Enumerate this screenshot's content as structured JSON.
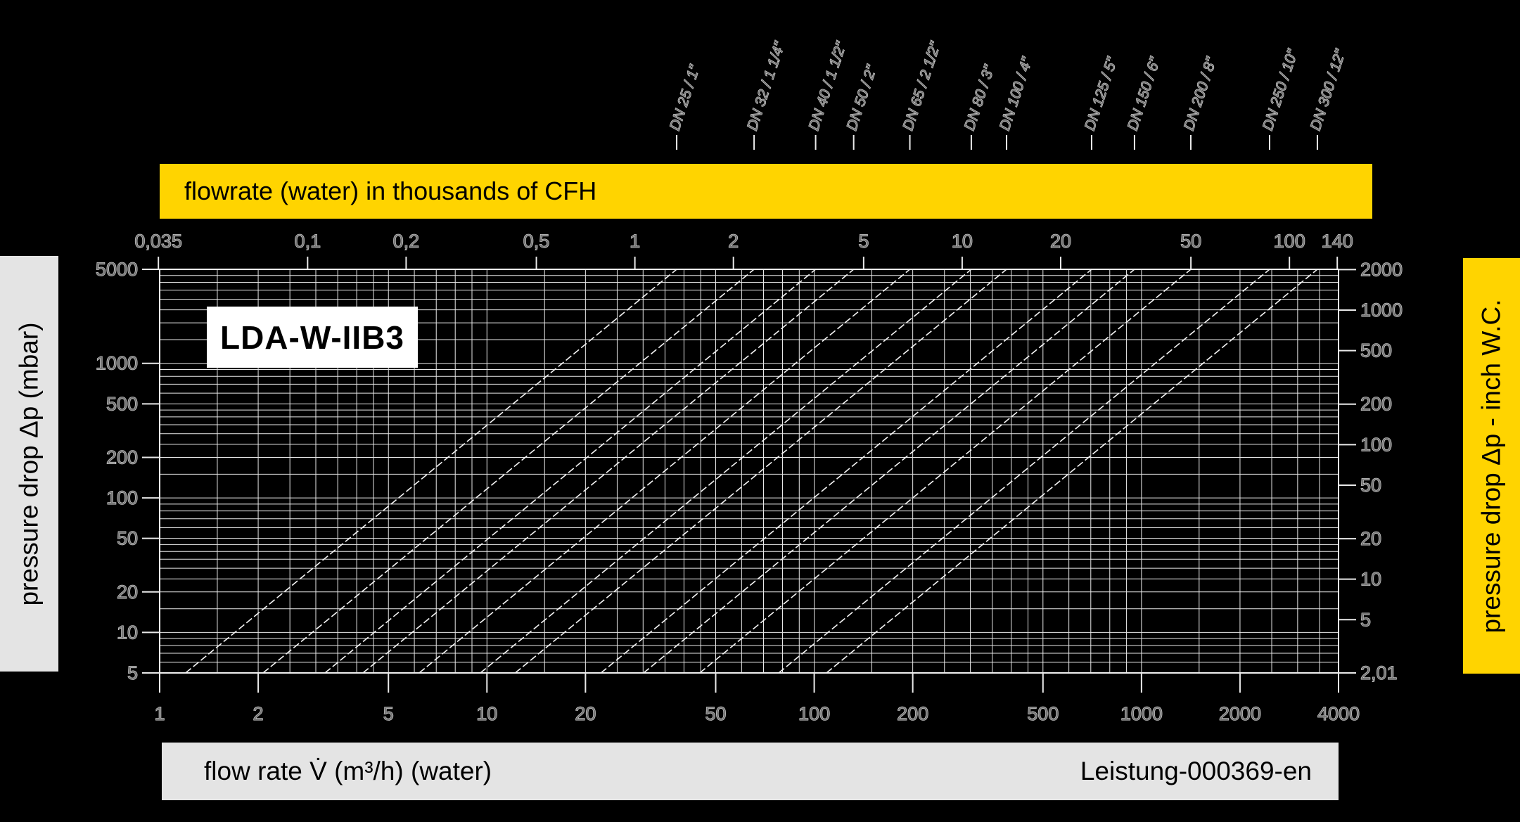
{
  "banner_top": {
    "label": "flowrate (water) in thousands of CFH"
  },
  "sidebar_left": {
    "label": "pressure drop Δp (mbar)"
  },
  "sidebar_right": {
    "label": "pressure drop Δp - inch W.C."
  },
  "footer": {
    "label_left": "flow rate V̇ (m³/h) (water)",
    "label_right": "Leistung-000369-en"
  },
  "chart_label": "LDA-W-IIB3",
  "colors": {
    "background": "#000000",
    "accent_yellow": "#ffd400",
    "panel_grey": "#e4e4e4",
    "grid_line": "#e9e9e9",
    "curve": "#f5f5f5",
    "axis_text": "#d4d4d4"
  },
  "chart_data": {
    "type": "line",
    "title": "LDA-W-IIB3",
    "description": "Pressure drop vs. flow rate (water) for LDA-W-IIB3 meters, one dashed diagonal per meter size; Δp ∝ flow² (slope 2 on log-log grid).",
    "x_axis_bottom": {
      "label": "flow rate V̇ (m³/h) (water)",
      "scale": "log",
      "range": [
        1,
        4000
      ],
      "tick_labels": [
        "1",
        "2",
        "5",
        "10",
        "20",
        "50",
        "100",
        "200",
        "500",
        "1000",
        "2000",
        "4000"
      ]
    },
    "x_axis_top": {
      "label": "flowrate (water) in thousands of CFH",
      "scale": "log",
      "range": [
        0.035,
        141
      ],
      "tick_labels": [
        "0,035",
        "0,1",
        "0,2",
        "0,5",
        "1",
        "2",
        "5",
        "10",
        "20",
        "50",
        "100",
        "140"
      ],
      "m3h_per_thousand_cfh": 28.3168
    },
    "y_axis_left": {
      "label": "pressure drop Δp (mbar)",
      "scale": "log",
      "range": [
        5,
        5000
      ],
      "tick_labels": [
        "5000",
        "1000",
        "500",
        "200",
        "100",
        "50",
        "20",
        "10",
        "5"
      ]
    },
    "y_axis_right": {
      "label": "pressure drop Δp - inch W.C.",
      "scale": "log",
      "range": [
        2.01,
        2008
      ],
      "tick_labels": [
        "2000",
        "1000",
        "500",
        "200",
        "100",
        "50",
        "20",
        "10",
        "5",
        "2,01"
      ]
    },
    "grid": {
      "on": true,
      "mantissas": [
        1,
        1.5,
        2,
        2.5,
        3,
        3.5,
        4,
        4.5,
        5,
        6,
        7,
        8,
        9
      ]
    },
    "series": [
      {
        "label": "DN 25 / 1\"",
        "q_at_5mbar": 1.2,
        "q_at_5000mbar": 38
      },
      {
        "label": "DN 32 / 1 1/4\"",
        "q_at_5mbar": 2.07,
        "q_at_5000mbar": 65.5
      },
      {
        "label": "DN 40 / 1 1/2\"",
        "q_at_5mbar": 3.2,
        "q_at_5000mbar": 101
      },
      {
        "label": "DN 50 / 2\"",
        "q_at_5mbar": 4.18,
        "q_at_5000mbar": 132
      },
      {
        "label": "DN 65 / 2 1/2\"",
        "q_at_5mbar": 6.21,
        "q_at_5000mbar": 196
      },
      {
        "label": "DN 80 / 3\"",
        "q_at_5mbar": 9.55,
        "q_at_5000mbar": 302
      },
      {
        "label": "DN 100 / 4\"",
        "q_at_5mbar": 12.2,
        "q_at_5000mbar": 387
      },
      {
        "label": "DN 125 / 5\"",
        "q_at_5mbar": 22.3,
        "q_at_5000mbar": 704
      },
      {
        "label": "DN 150 / 6\"",
        "q_at_5mbar": 30.1,
        "q_at_5000mbar": 952
      },
      {
        "label": "DN 200 / 8\"",
        "q_at_5mbar": 44.7,
        "q_at_5000mbar": 1415
      },
      {
        "label": "DN 250 / 10\"",
        "q_at_5mbar": 77.9,
        "q_at_5000mbar": 2463
      },
      {
        "label": "DN 300 / 12\"",
        "q_at_5mbar": 109,
        "q_at_5000mbar": 3447
      }
    ]
  }
}
